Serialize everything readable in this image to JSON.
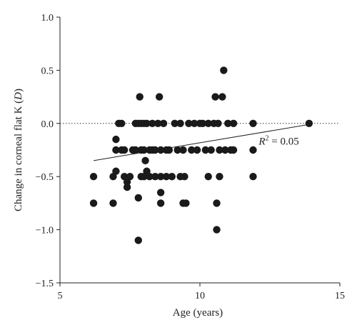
{
  "chart_data": {
    "type": "scatter",
    "xlabel": "Age (years)",
    "ylabel_prefix": "Change in corneal flat K (",
    "ylabel_unit": "D",
    "ylabel_suffix": ")",
    "xlim": [
      5,
      15
    ],
    "ylim": [
      -1.5,
      1.0
    ],
    "xticks": [
      5,
      10,
      15
    ],
    "yticks": [
      1.0,
      0.5,
      0.0,
      -0.5,
      -1.0,
      -1.5
    ],
    "ytick_labels": [
      "1.0",
      "0.5",
      "0.0",
      "−0.5",
      "−1.0",
      "−1.5"
    ],
    "xtick_labels": [
      "5",
      "10",
      "15"
    ],
    "reference_line": {
      "y": 0.0,
      "style": "dotted"
    },
    "trendline": {
      "x": [
        6.2,
        13.9
      ],
      "y": [
        -0.35,
        -0.01
      ]
    },
    "annotation": {
      "r_symbol": "R",
      "exponent": "2",
      "text": " = 0.05",
      "x": 12.1,
      "y": -0.2
    },
    "marker_color": "#1a1a1a",
    "points": [
      {
        "x": 6.2,
        "y": -0.5
      },
      {
        "x": 6.2,
        "y": -0.75
      },
      {
        "x": 6.9,
        "y": -0.5
      },
      {
        "x": 6.9,
        "y": -0.75
      },
      {
        "x": 7.0,
        "y": -0.15
      },
      {
        "x": 7.0,
        "y": -0.25
      },
      {
        "x": 7.0,
        "y": -0.45
      },
      {
        "x": 7.1,
        "y": 0.0
      },
      {
        "x": 7.2,
        "y": 0.0
      },
      {
        "x": 7.2,
        "y": -0.25
      },
      {
        "x": 7.3,
        "y": -0.25
      },
      {
        "x": 7.3,
        "y": -0.5
      },
      {
        "x": 7.4,
        "y": -0.55
      },
      {
        "x": 7.4,
        "y": -0.6
      },
      {
        "x": 7.5,
        "y": -0.5
      },
      {
        "x": 7.6,
        "y": -0.25
      },
      {
        "x": 7.7,
        "y": 0.0
      },
      {
        "x": 7.7,
        "y": -0.25
      },
      {
        "x": 7.8,
        "y": 0.0
      },
      {
        "x": 7.8,
        "y": -0.7
      },
      {
        "x": 7.8,
        "y": -1.1
      },
      {
        "x": 7.85,
        "y": 0.25
      },
      {
        "x": 7.9,
        "y": 0.0
      },
      {
        "x": 7.9,
        "y": -0.25
      },
      {
        "x": 7.9,
        "y": -0.5
      },
      {
        "x": 8.0,
        "y": 0.0
      },
      {
        "x": 8.0,
        "y": -0.25
      },
      {
        "x": 8.0,
        "y": -0.5
      },
      {
        "x": 8.05,
        "y": -0.35
      },
      {
        "x": 8.1,
        "y": -0.45
      },
      {
        "x": 8.1,
        "y": 0.0
      },
      {
        "x": 8.2,
        "y": -0.25
      },
      {
        "x": 8.2,
        "y": -0.5
      },
      {
        "x": 8.3,
        "y": 0.0
      },
      {
        "x": 8.3,
        "y": -0.25
      },
      {
        "x": 8.4,
        "y": -0.25
      },
      {
        "x": 8.4,
        "y": -0.5
      },
      {
        "x": 8.5,
        "y": 0.0
      },
      {
        "x": 8.55,
        "y": 0.25
      },
      {
        "x": 8.6,
        "y": -0.25
      },
      {
        "x": 8.6,
        "y": -0.5
      },
      {
        "x": 8.6,
        "y": -0.65
      },
      {
        "x": 8.6,
        "y": -0.75
      },
      {
        "x": 8.7,
        "y": 0.0
      },
      {
        "x": 8.8,
        "y": -0.25
      },
      {
        "x": 8.8,
        "y": -0.5
      },
      {
        "x": 8.9,
        "y": -0.25
      },
      {
        "x": 9.0,
        "y": -0.5
      },
      {
        "x": 9.1,
        "y": 0.0
      },
      {
        "x": 9.2,
        "y": -0.25
      },
      {
        "x": 9.3,
        "y": 0.0
      },
      {
        "x": 9.3,
        "y": -0.5
      },
      {
        "x": 9.4,
        "y": -0.25
      },
      {
        "x": 9.4,
        "y": -0.75
      },
      {
        "x": 9.45,
        "y": -0.5
      },
      {
        "x": 9.5,
        "y": -0.75
      },
      {
        "x": 9.6,
        "y": 0.0
      },
      {
        "x": 9.7,
        "y": -0.25
      },
      {
        "x": 9.8,
        "y": 0.0
      },
      {
        "x": 9.9,
        "y": -0.25
      },
      {
        "x": 10.0,
        "y": 0.0
      },
      {
        "x": 10.1,
        "y": 0.0
      },
      {
        "x": 10.2,
        "y": -0.25
      },
      {
        "x": 10.3,
        "y": 0.0
      },
      {
        "x": 10.3,
        "y": -0.5
      },
      {
        "x": 10.4,
        "y": -0.25
      },
      {
        "x": 10.5,
        "y": 0.0
      },
      {
        "x": 10.55,
        "y": 0.25
      },
      {
        "x": 10.6,
        "y": -0.75
      },
      {
        "x": 10.6,
        "y": -1.0
      },
      {
        "x": 10.65,
        "y": 0.0
      },
      {
        "x": 10.7,
        "y": -0.25
      },
      {
        "x": 10.7,
        "y": -0.5
      },
      {
        "x": 10.8,
        "y": 0.25
      },
      {
        "x": 10.85,
        "y": 0.5
      },
      {
        "x": 10.9,
        "y": -0.25
      },
      {
        "x": 11.0,
        "y": 0.0
      },
      {
        "x": 11.1,
        "y": -0.25
      },
      {
        "x": 11.2,
        "y": 0.0
      },
      {
        "x": 11.2,
        "y": -0.25
      },
      {
        "x": 11.9,
        "y": 0.0
      },
      {
        "x": 11.9,
        "y": -0.25
      },
      {
        "x": 11.9,
        "y": -0.5
      },
      {
        "x": 13.9,
        "y": 0.0
      }
    ]
  }
}
